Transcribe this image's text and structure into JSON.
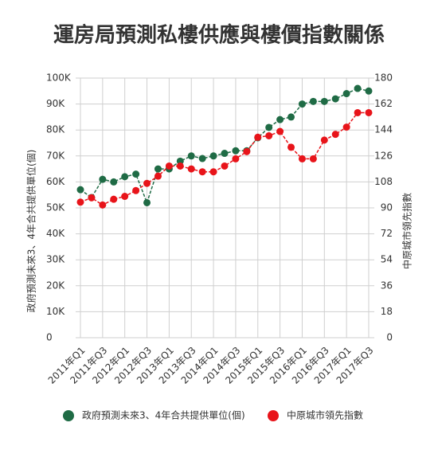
{
  "chart_data": {
    "type": "line",
    "title": "運房局預測私樓供應與樓價指數關係",
    "y_label": "政府預測未來3、4年合共提供單位(個)",
    "y2_label": "中原城市領先指數",
    "categories": [
      "2011年Q1",
      null,
      "2011年Q3",
      null,
      "2012年Q1",
      null,
      "2012年Q3",
      null,
      "2013年Q1",
      null,
      "2013年Q3",
      null,
      "2014年Q1",
      null,
      "2014年Q3",
      null,
      "2015年Q1",
      null,
      "2015年Q3",
      null,
      "2016年Q1",
      null,
      "2016年Q3",
      null,
      "2017年Q1",
      null,
      "2017年Q3"
    ],
    "series": [
      {
        "name": "政府預測未來3、4年合共提供單位(個)",
        "color": "#1f6b45",
        "values": [
          57000,
          54000,
          61000,
          60000,
          62000,
          63000,
          52000,
          65000,
          65000,
          68000,
          70000,
          69000,
          70000,
          71000,
          72000,
          72000,
          77000,
          81000,
          84000,
          85000,
          90000,
          91000,
          91000,
          92000,
          94000,
          96000,
          95000
        ]
      },
      {
        "name": "中原城市領先指數",
        "color": "#e8141a",
        "axis": "y2",
        "values": [
          94,
          97,
          92,
          96,
          98,
          102,
          107,
          112,
          119,
          119,
          117,
          115,
          115,
          119,
          124,
          129,
          139,
          140,
          143,
          132,
          124,
          124,
          137,
          141,
          146,
          156,
          156
        ]
      }
    ],
    "ylim": [
      0,
      100000
    ],
    "yticks": [
      0,
      {
        "value": 10000,
        "label": "10K"
      },
      {
        "value": 20000,
        "label": "20K"
      },
      {
        "value": 30000,
        "label": "30K"
      },
      {
        "value": 40000,
        "label": "40K"
      },
      {
        "value": 50000,
        "label": "50K"
      },
      {
        "value": 60000,
        "label": "60K"
      },
      {
        "value": 70000,
        "label": "70K"
      },
      {
        "value": 80000,
        "label": "80K"
      },
      {
        "value": 90000,
        "label": "90K"
      },
      {
        "value": 100000,
        "label": "100K"
      }
    ],
    "y2lim": [
      0,
      180
    ],
    "y2ticks": [
      0,
      18,
      36,
      54,
      72,
      90,
      108,
      126,
      144,
      162,
      180
    ],
    "grid": true,
    "legend": "bottom"
  }
}
